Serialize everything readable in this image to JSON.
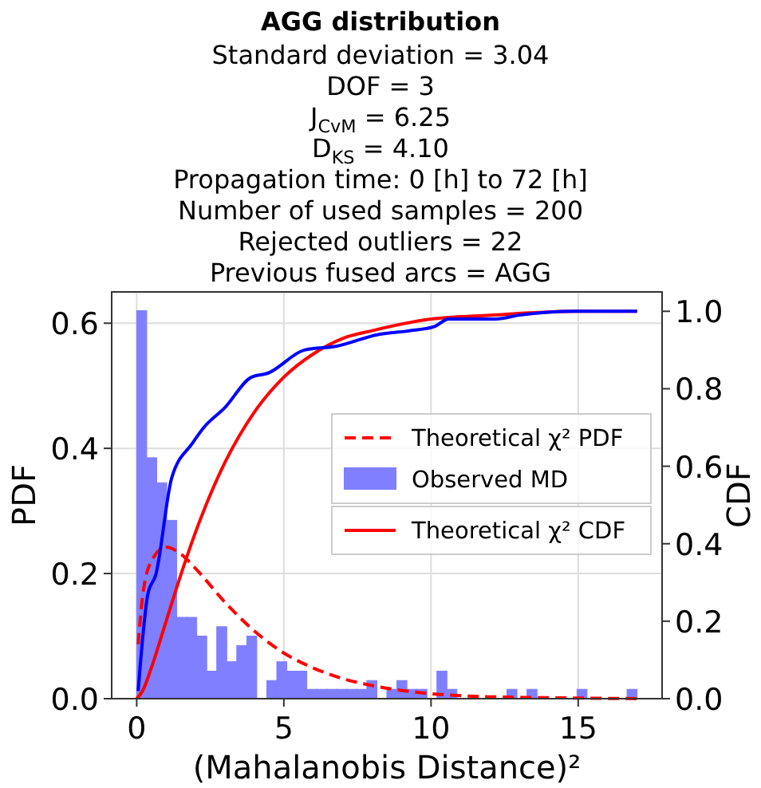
{
  "chart_data": {
    "type": "histogram",
    "title": "AGG distribution",
    "subtitle": "Standard deviation  = 3.04\nDOF = 3\nJ$_{CvM}$ = 6.25\nD$_{KS}$ = 4.10\nPropagation time: 0 [h] to 72 [h]\nNumber of used samples = 200\nRejected outliers = 22\nPrevious fused arcs = AGG",
    "xlabel": "(Mahalanobis Distance)²",
    "ylabel": "PDF",
    "y2label": "CDF",
    "bins": [
      0,
      0.34,
      0.68,
      1.02,
      1.36,
      1.7,
      2.04,
      2.38,
      2.72,
      3.06,
      3.4,
      3.74,
      4.08,
      4.42,
      4.76,
      5.1,
      5.44,
      5.78,
      6.12,
      6.46,
      6.8,
      7.14,
      7.48,
      7.82,
      8.16,
      8.5,
      8.84,
      9.18,
      9.52,
      9.86,
      10.2,
      10.54,
      10.88,
      11.22,
      11.56,
      11.9,
      12.24,
      12.58,
      12.92,
      13.26,
      13.6,
      13.94,
      14.28,
      14.62,
      14.96,
      15.3,
      15.64,
      15.98,
      16.32,
      16.66,
      17
    ],
    "series": [
      {
        "name": "Observed MD",
        "color": "#7f7fff",
        "values": [
          0.62,
          0.385,
          0.345,
          0.285,
          0.13,
          0.13,
          0.1,
          0.044,
          0.115,
          0.059,
          0.085,
          0.1,
          0,
          0.029,
          0.059,
          0.044,
          0.044,
          0.015,
          0.015,
          0.015,
          0.015,
          0.015,
          0.015,
          0.029,
          0,
          0.015,
          0.029,
          0.015,
          0.015,
          0,
          0.044,
          0.015,
          0,
          0,
          0,
          0,
          0,
          0.015,
          0,
          0.015,
          0,
          0,
          0,
          0,
          0.015,
          0,
          0,
          0,
          0,
          0.015
        ]
      },
      {
        "type": "line",
        "name": "Theoretical χ² PDF",
        "color": "#ff0000",
        "line_style": "dashed",
        "x": [
          0.05,
          0.2,
          0.5,
          1,
          1.5,
          2,
          3,
          4,
          5,
          6,
          7,
          8,
          10,
          12,
          15,
          17
        ],
        "values": [
          0.087,
          0.163,
          0.22,
          0.242,
          0.231,
          0.208,
          0.154,
          0.108,
          0.073,
          0.049,
          0.032,
          0.021,
          0.008,
          0.003,
          0.001,
          0
        ]
      },
      {
        "type": "line",
        "name": "Theoretical χ² CDF",
        "color": "#ff0000",
        "line_style": "solid",
        "axis": "y2",
        "x": [
          0,
          0.2,
          0.5,
          1,
          1.5,
          2,
          3,
          4,
          5,
          6,
          7,
          8,
          10,
          12,
          15,
          17
        ],
        "values": [
          0,
          0.02,
          0.08,
          0.2,
          0.32,
          0.43,
          0.61,
          0.74,
          0.83,
          0.89,
          0.93,
          0.95,
          0.98,
          0.99,
          1,
          1
        ]
      },
      {
        "type": "line",
        "color": "#0000ff",
        "line_style": "solid",
        "axis": "y2",
        "x": [
          0.05,
          0.38,
          0.65,
          1.19,
          1.9,
          2.28,
          2.98,
          3.9,
          4.45,
          5.7,
          6.8,
          8.2,
          9.3,
          10.1,
          10.6,
          12.2,
          13,
          14.9,
          16.5,
          17
        ],
        "values": [
          0.02,
          0.27,
          0.32,
          0.57,
          0.66,
          0.7,
          0.75,
          0.83,
          0.84,
          0.9,
          0.91,
          0.94,
          0.95,
          0.96,
          0.98,
          0.98,
          0.99,
          1,
          1,
          1
        ]
      }
    ],
    "xlim": [
      -0.85,
      17.85
    ],
    "xticks": [
      0,
      5,
      10,
      15
    ],
    "ylim": [
      0,
      0.65
    ],
    "yticks": [
      {
        "value": 0,
        "label": "0.0"
      },
      {
        "value": 0.2,
        "label": "0.2"
      },
      {
        "value": 0.4,
        "label": "0.4"
      },
      {
        "value": 0.6,
        "label": "0.6"
      }
    ],
    "y2lim": [
      0,
      1.05
    ],
    "y2ticks": [
      {
        "value": 0,
        "label": "0.0"
      },
      {
        "value": 0.2,
        "label": "0.2"
      },
      {
        "value": 0.4,
        "label": "0.4"
      },
      {
        "value": 0.6,
        "label": "0.6"
      },
      {
        "value": 0.8,
        "label": "0.8"
      },
      {
        "value": 1,
        "label": "1.0"
      }
    ],
    "grid": true,
    "legend": "right"
  }
}
